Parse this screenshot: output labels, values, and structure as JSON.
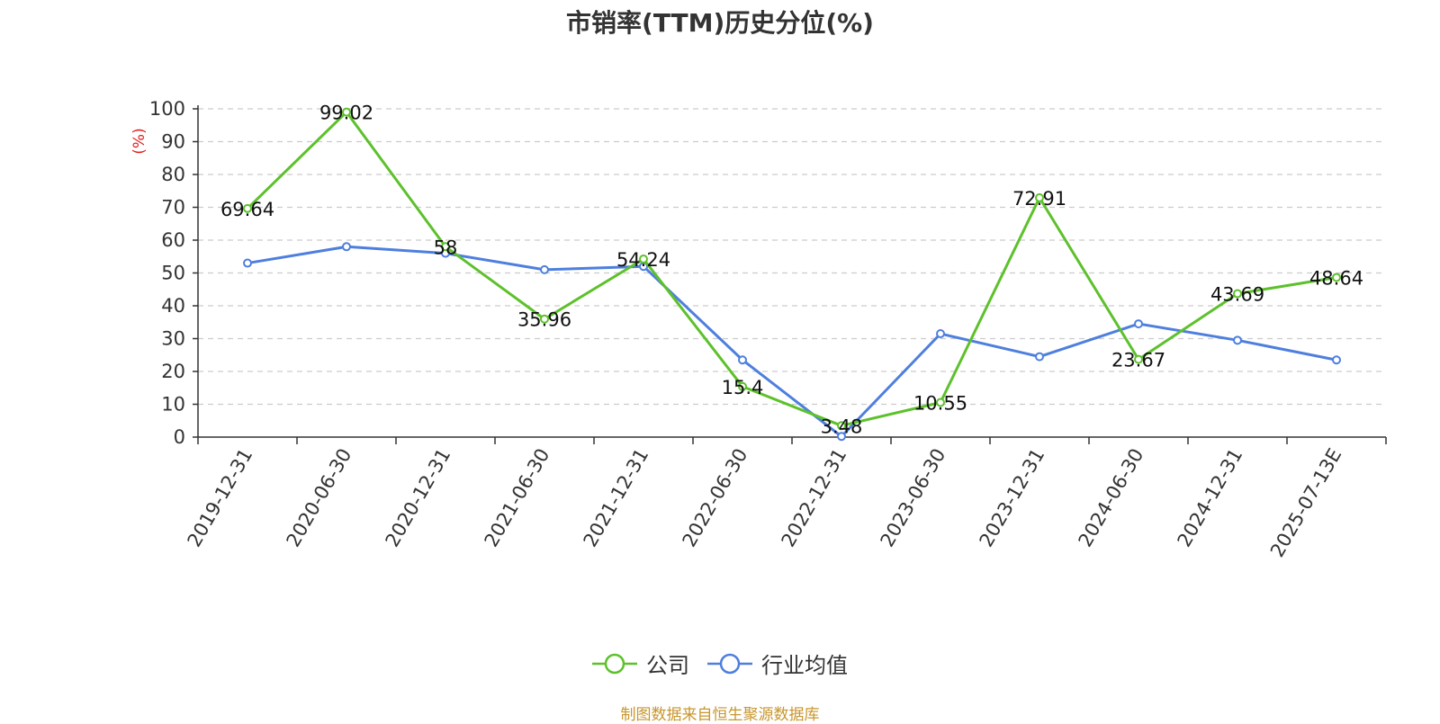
{
  "chart_data": {
    "type": "line",
    "title": "市销率(TTM)历史分位(%)",
    "ylabel": "(%)",
    "xlabel": "",
    "ylim": [
      0,
      100
    ],
    "yticks": [
      0,
      10,
      20,
      30,
      40,
      50,
      60,
      70,
      80,
      90,
      100
    ],
    "grid": true,
    "legend_position": "bottom",
    "categories": [
      "2019-12-31",
      "2020-06-30",
      "2020-12-31",
      "2021-06-30",
      "2021-12-31",
      "2022-06-30",
      "2022-12-31",
      "2023-06-30",
      "2023-12-31",
      "2024-06-30",
      "2024-12-31",
      "2025-07-13E"
    ],
    "series": [
      {
        "name": "公司",
        "color": "#5dc12b",
        "values": [
          69.64,
          99.02,
          58,
          35.96,
          54.24,
          15.4,
          3.48,
          10.55,
          72.91,
          23.67,
          43.69,
          48.64
        ],
        "data_labels": [
          "69.64",
          "99.02",
          "58",
          "35.96",
          "54.24",
          "15.4",
          "3.48",
          "10.55",
          "72.91",
          "23.67",
          "43.69",
          "48.64"
        ]
      },
      {
        "name": "行业均值",
        "color": "#4e7fde",
        "values": [
          53,
          58,
          56,
          51,
          52,
          23.5,
          0.2,
          31.5,
          24.5,
          34.5,
          29.5,
          23.5
        ]
      }
    ]
  },
  "source_note": "制图数据来自恒生聚源数据库"
}
